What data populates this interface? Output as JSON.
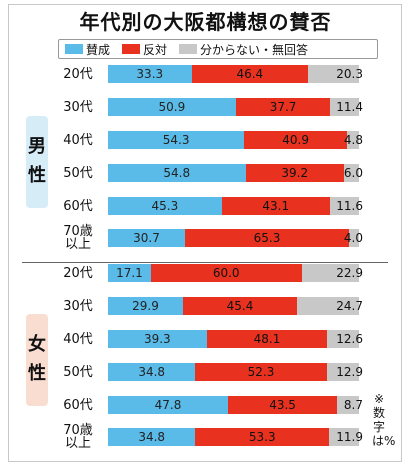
{
  "chart_data": {
    "type": "bar",
    "stacked": true,
    "orientation": "horizontal",
    "title": "年代別の大阪都構想の賛否",
    "legend": [
      "賛成",
      "反対",
      "分からない・無回答"
    ],
    "colors": {
      "for": "#5bbbe8",
      "against": "#e8321f",
      "undecided": "#c8c8c8",
      "male_panel": "#d6ecf7",
      "female_panel": "#f9ddd0"
    },
    "xlim": [
      0,
      100
    ],
    "note": "※数字は%",
    "groups": [
      {
        "label": "男性",
        "rows": [
          {
            "category": "20代",
            "for": 33.3,
            "against": 46.4,
            "undecided": 20.3
          },
          {
            "category": "30代",
            "for": 50.9,
            "against": 37.7,
            "undecided": 11.4
          },
          {
            "category": "40代",
            "for": 54.3,
            "against": 40.9,
            "undecided": 4.8
          },
          {
            "category": "50代",
            "for": 54.8,
            "against": 39.2,
            "undecided": 6.0
          },
          {
            "category": "60代",
            "for": 45.3,
            "against": 43.1,
            "undecided": 11.6
          },
          {
            "category": "70歳以上",
            "for": 30.7,
            "against": 65.3,
            "undecided": 4.0
          }
        ]
      },
      {
        "label": "女性",
        "rows": [
          {
            "category": "20代",
            "for": 17.1,
            "against": 60.0,
            "undecided": 22.9
          },
          {
            "category": "30代",
            "for": 29.9,
            "against": 45.4,
            "undecided": 24.7
          },
          {
            "category": "40代",
            "for": 39.3,
            "against": 48.1,
            "undecided": 12.6
          },
          {
            "category": "50代",
            "for": 34.8,
            "against": 52.3,
            "undecided": 12.9
          },
          {
            "category": "60代",
            "for": 47.8,
            "against": 43.5,
            "undecided": 8.7
          },
          {
            "category": "70歳以上",
            "for": 34.8,
            "against": 53.3,
            "undecided": 11.9
          }
        ]
      }
    ]
  }
}
